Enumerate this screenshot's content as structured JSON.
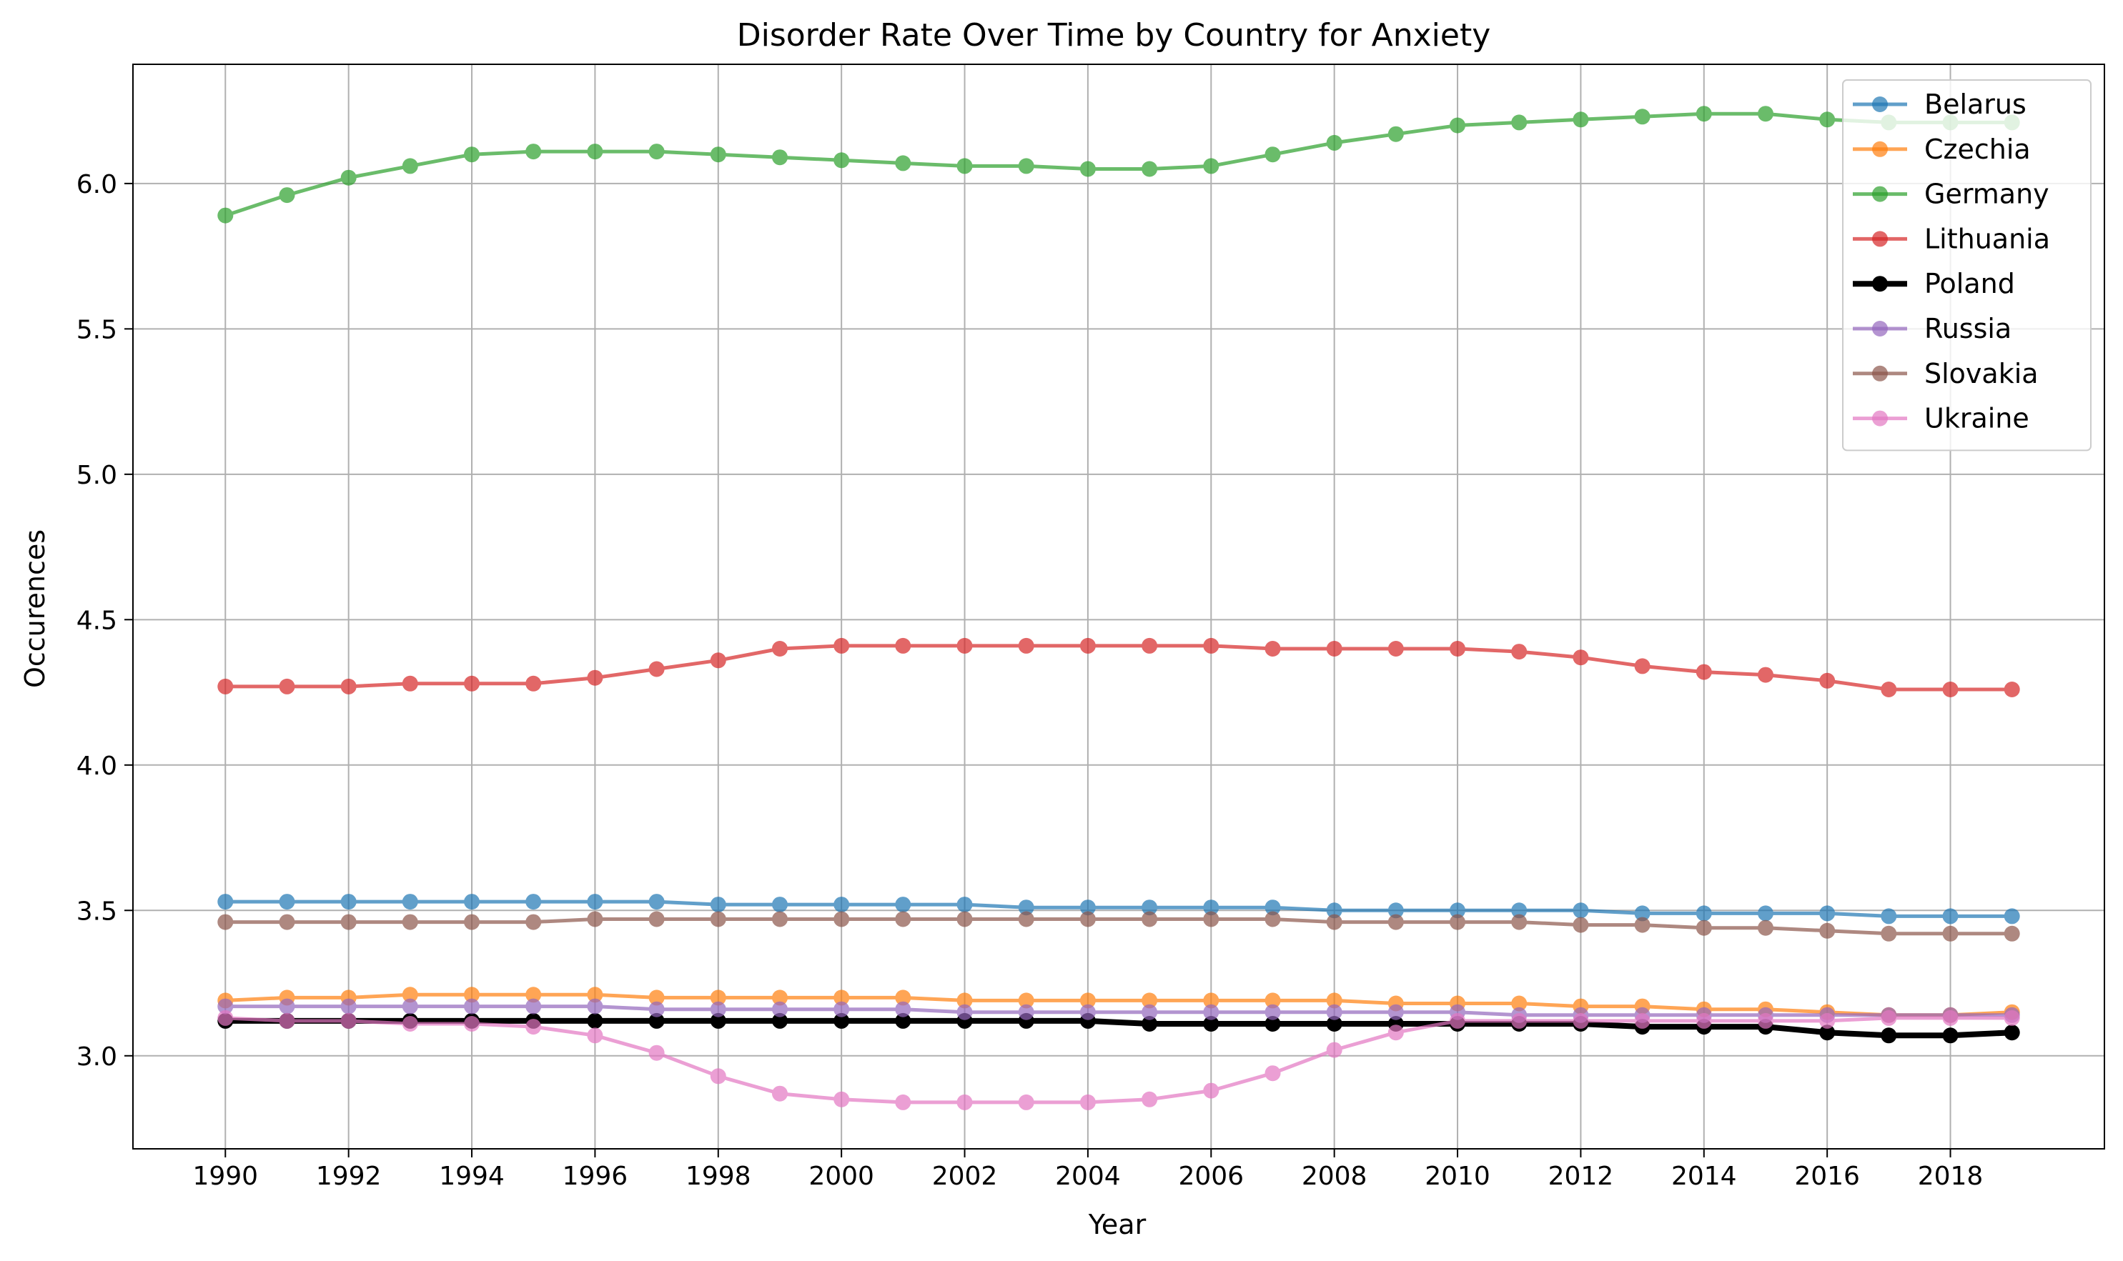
{
  "chart_data": {
    "type": "line",
    "title": "Disorder Rate Over Time by Country for Anxiety",
    "xlabel": "Year",
    "ylabel": "Occurences",
    "xlim": [
      1988.5,
      2020.5
    ],
    "ylim": [
      2.68,
      6.41
    ],
    "x_ticks": [
      1990,
      1992,
      1994,
      1996,
      1998,
      2000,
      2002,
      2004,
      2006,
      2008,
      2010,
      2012,
      2014,
      2016,
      2018
    ],
    "y_ticks": [
      3.0,
      3.5,
      4.0,
      4.5,
      5.0,
      5.5,
      6.0
    ],
    "y_tick_labels": [
      "3.0",
      "3.5",
      "4.0",
      "4.5",
      "5.0",
      "5.5",
      "6.0"
    ],
    "grid": true,
    "legend_position": "top-right",
    "x": [
      1990,
      1991,
      1992,
      1993,
      1994,
      1995,
      1996,
      1997,
      1998,
      1999,
      2000,
      2001,
      2002,
      2003,
      2004,
      2005,
      2006,
      2007,
      2008,
      2009,
      2010,
      2011,
      2012,
      2013,
      2014,
      2015,
      2016,
      2017,
      2018,
      2019
    ],
    "series": [
      {
        "name": "Belarus",
        "color": "#1f77b4",
        "values": [
          3.53,
          3.53,
          3.53,
          3.53,
          3.53,
          3.53,
          3.53,
          3.53,
          3.52,
          3.52,
          3.52,
          3.52,
          3.52,
          3.51,
          3.51,
          3.51,
          3.51,
          3.51,
          3.5,
          3.5,
          3.5,
          3.5,
          3.5,
          3.49,
          3.49,
          3.49,
          3.49,
          3.48,
          3.48,
          3.48
        ]
      },
      {
        "name": "Czechia",
        "color": "#ff7f0e",
        "values": [
          3.19,
          3.2,
          3.2,
          3.21,
          3.21,
          3.21,
          3.21,
          3.2,
          3.2,
          3.2,
          3.2,
          3.2,
          3.19,
          3.19,
          3.19,
          3.19,
          3.19,
          3.19,
          3.19,
          3.18,
          3.18,
          3.18,
          3.17,
          3.17,
          3.16,
          3.16,
          3.15,
          3.14,
          3.14,
          3.15
        ]
      },
      {
        "name": "Germany",
        "color": "#2ca02c",
        "values": [
          5.89,
          5.96,
          6.02,
          6.06,
          6.1,
          6.11,
          6.11,
          6.11,
          6.1,
          6.09,
          6.08,
          6.07,
          6.06,
          6.06,
          6.05,
          6.05,
          6.06,
          6.1,
          6.14,
          6.17,
          6.2,
          6.21,
          6.22,
          6.23,
          6.24,
          6.24,
          6.22,
          6.21,
          6.21,
          6.21
        ]
      },
      {
        "name": "Lithuania",
        "color": "#d62728",
        "values": [
          4.27,
          4.27,
          4.27,
          4.28,
          4.28,
          4.28,
          4.3,
          4.33,
          4.36,
          4.4,
          4.41,
          4.41,
          4.41,
          4.41,
          4.41,
          4.41,
          4.41,
          4.4,
          4.4,
          4.4,
          4.4,
          4.39,
          4.37,
          4.34,
          4.32,
          4.31,
          4.29,
          4.26,
          4.26,
          4.26
        ]
      },
      {
        "name": "Poland",
        "color": "#000000",
        "bold": true,
        "values": [
          3.12,
          3.12,
          3.12,
          3.12,
          3.12,
          3.12,
          3.12,
          3.12,
          3.12,
          3.12,
          3.12,
          3.12,
          3.12,
          3.12,
          3.12,
          3.11,
          3.11,
          3.11,
          3.11,
          3.11,
          3.11,
          3.11,
          3.11,
          3.1,
          3.1,
          3.1,
          3.08,
          3.07,
          3.07,
          3.08
        ]
      },
      {
        "name": "Russia",
        "color": "#9467bd",
        "values": [
          3.17,
          3.17,
          3.17,
          3.17,
          3.17,
          3.17,
          3.17,
          3.16,
          3.16,
          3.16,
          3.16,
          3.16,
          3.15,
          3.15,
          3.15,
          3.15,
          3.15,
          3.15,
          3.15,
          3.15,
          3.15,
          3.14,
          3.14,
          3.14,
          3.14,
          3.14,
          3.14,
          3.14,
          3.14,
          3.14
        ]
      },
      {
        "name": "Slovakia",
        "color": "#8c564b",
        "values": [
          3.46,
          3.46,
          3.46,
          3.46,
          3.46,
          3.46,
          3.47,
          3.47,
          3.47,
          3.47,
          3.47,
          3.47,
          3.47,
          3.47,
          3.47,
          3.47,
          3.47,
          3.47,
          3.46,
          3.46,
          3.46,
          3.46,
          3.45,
          3.45,
          3.44,
          3.44,
          3.43,
          3.42,
          3.42,
          3.42
        ]
      },
      {
        "name": "Ukraine",
        "color": "#e377c2",
        "values": [
          3.13,
          3.12,
          3.12,
          3.11,
          3.11,
          3.1,
          3.07,
          3.01,
          2.93,
          2.87,
          2.85,
          2.84,
          2.84,
          2.84,
          2.84,
          2.85,
          2.88,
          2.94,
          3.02,
          3.08,
          3.12,
          3.12,
          3.12,
          3.12,
          3.12,
          3.12,
          3.12,
          3.13,
          3.13,
          3.13
        ]
      }
    ]
  }
}
